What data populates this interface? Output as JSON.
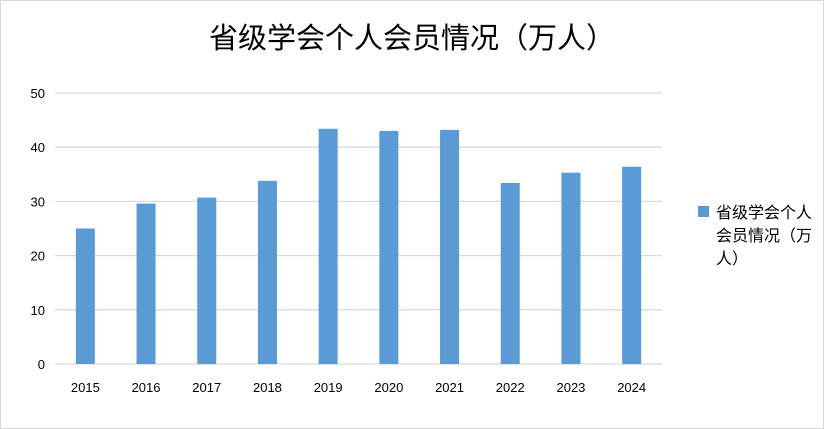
{
  "chart_data": {
    "type": "bar",
    "title": "省级学会个人会员情况（万人）",
    "categories": [
      "2015",
      "2016",
      "2017",
      "2018",
      "2019",
      "2020",
      "2021",
      "2022",
      "2023",
      "2024"
    ],
    "series": [
      {
        "name": "省级学会个人会员情况（万人）",
        "values": [
          25.0,
          29.6,
          30.7,
          33.8,
          43.4,
          43.0,
          43.2,
          33.4,
          35.3,
          36.4
        ],
        "color": "#5b9bd5"
      }
    ],
    "xlabel": "",
    "ylabel": "",
    "ylim": [
      0,
      50
    ],
    "yticks": [
      "0",
      "10",
      "20",
      "30",
      "40",
      "50"
    ],
    "grid": true,
    "legend": "right"
  }
}
